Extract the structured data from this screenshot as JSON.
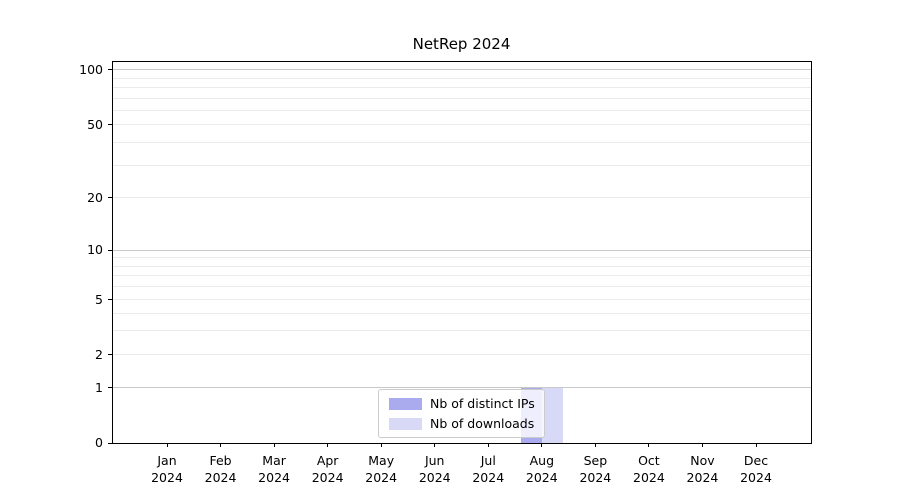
{
  "title": "NetRep 2024",
  "chart_data": {
    "type": "bar",
    "title": "NetRep 2024",
    "categories": [
      "Jan 2024",
      "Feb 2024",
      "Mar 2024",
      "Apr 2024",
      "May 2024",
      "Jun 2024",
      "Jul 2024",
      "Aug 2024",
      "Sep 2024",
      "Oct 2024",
      "Nov 2024",
      "Dec 2024"
    ],
    "series": [
      {
        "name": "Nb of distinct IPs",
        "color": "#aaaaee",
        "values": [
          0,
          0,
          0,
          0,
          0,
          0,
          0,
          1,
          0,
          0,
          0,
          0
        ]
      },
      {
        "name": "Nb of downloads",
        "color": "#d8d8f7",
        "values": [
          0,
          0,
          0,
          0,
          0,
          0,
          0,
          1,
          0,
          0,
          0,
          0
        ]
      }
    ],
    "xlabel": "",
    "ylabel": "",
    "yscale": "symlog",
    "y_ticks": [
      0,
      1,
      2,
      5,
      10,
      20,
      50,
      100
    ],
    "y_tick_labels": [
      "0",
      "1",
      "2",
      "5",
      "10",
      "20",
      "50",
      "100"
    ],
    "ylim": [
      0,
      105
    ],
    "grid": "horizontal major (1,10,100 darker) + faint log minor gridlines",
    "legend_position": "lower center"
  }
}
